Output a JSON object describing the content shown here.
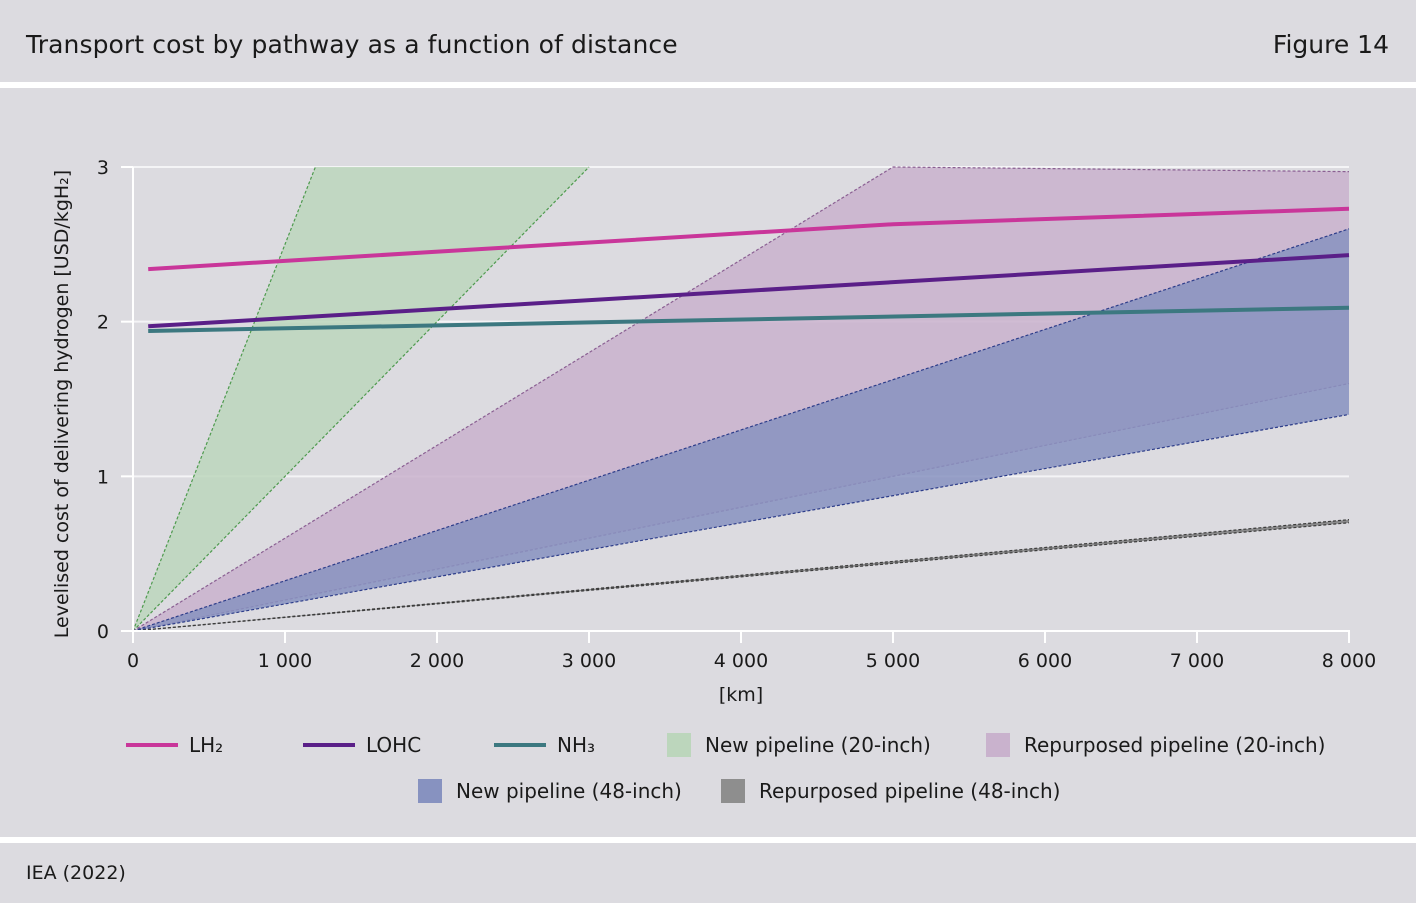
{
  "header": {
    "title": "Transport cost by pathway as a function of distance",
    "figure_label": "Figure 14"
  },
  "footer": {
    "source": "IEA (2022)"
  },
  "chart_data": {
    "type": "line",
    "xlabel": "[km]",
    "ylabel": "Levelised cost of delivering hydrogen [USD/kgH₂]",
    "xlim": [
      0,
      8000
    ],
    "ylim": [
      0,
      3
    ],
    "x_ticks": [
      0,
      1000,
      2000,
      3000,
      4000,
      5000,
      6000,
      7000,
      8000
    ],
    "x_tick_labels": [
      "0",
      "1 000",
      "2 000",
      "3 000",
      "4 000",
      "5 000",
      "6 000",
      "7 000",
      "8 000"
    ],
    "y_ticks": [
      0,
      1,
      2,
      3
    ],
    "y_tick_labels": [
      "0",
      "1",
      "2",
      "3"
    ],
    "grid": "horizontal",
    "legend_position": "bottom",
    "series": [
      {
        "name": "LH₂",
        "kind": "line",
        "color": "#c9369a",
        "points": [
          [
            100,
            2.34
          ],
          [
            5000,
            2.63
          ],
          [
            8000,
            2.73
          ]
        ]
      },
      {
        "name": "LOHC",
        "kind": "line",
        "color": "#5a1f88",
        "points": [
          [
            100,
            1.97
          ],
          [
            8000,
            2.43
          ]
        ]
      },
      {
        "name": "NH₃",
        "kind": "line",
        "color": "#3c7880",
        "points": [
          [
            100,
            1.94
          ],
          [
            8000,
            2.09
          ]
        ]
      }
    ],
    "bands": [
      {
        "name": "New pipeline (20-inch)",
        "color": "#bcd6bc",
        "edge": "#4e9a4e",
        "lower": [
          [
            0,
            0
          ],
          [
            3000,
            3.0
          ]
        ],
        "upper": [
          [
            0,
            0
          ],
          [
            1200,
            3.0
          ]
        ]
      },
      {
        "name": "Repurposed pipeline (20-inch)",
        "color": "#c9b2cd",
        "edge": "#8a5f92",
        "lower": [
          [
            0,
            0
          ],
          [
            8000,
            1.6
          ]
        ],
        "upper": [
          [
            0,
            0
          ],
          [
            5000,
            3.0
          ],
          [
            8000,
            2.97
          ]
        ]
      },
      {
        "name": "New pipeline (48-inch)",
        "color": "#8792c0",
        "edge": "#2d3d8a",
        "lower": [
          [
            0,
            0
          ],
          [
            8000,
            1.4
          ]
        ],
        "upper": [
          [
            0,
            0
          ],
          [
            8000,
            2.6
          ]
        ]
      },
      {
        "name": "Repurposed pipeline (48-inch)",
        "color": "#7c7c7c",
        "edge": "#3c3c3c",
        "lower": [
          [
            0,
            0
          ],
          [
            8000,
            0.7
          ]
        ],
        "upper": [
          [
            0,
            0
          ],
          [
            8000,
            0.72
          ]
        ]
      }
    ],
    "legend": [
      {
        "label": "LH₂",
        "type": "line",
        "color": "#c9369a"
      },
      {
        "label": "LOHC",
        "type": "line",
        "color": "#5a1f88"
      },
      {
        "label": "NH₃",
        "type": "line",
        "color": "#3c7880"
      },
      {
        "label": "New pipeline (20-inch)",
        "type": "swatch",
        "color": "#bcd6bc"
      },
      {
        "label": "Repurposed pipeline (20-inch)",
        "type": "swatch",
        "color": "#c9b2cd"
      },
      {
        "label": "New pipeline (48-inch)",
        "type": "swatch",
        "color": "#8792c0"
      },
      {
        "label": "Repurposed pipeline (48-inch)",
        "type": "swatch",
        "color": "#8e8e8e"
      }
    ]
  }
}
